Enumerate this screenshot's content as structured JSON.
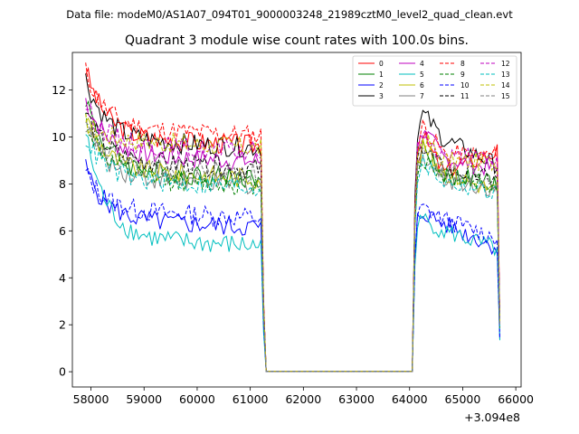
{
  "chart_data": {
    "type": "line",
    "suptitle": "Data file: modeM0/AS1A07_094T01_9000003248_21989cztM0_level2_quad_clean.evt",
    "title": "Quadrant 3 module wise count rates with 100.0s bins.",
    "x_offset_label": "+3.094e8",
    "xlim": [
      57650,
      66100
    ],
    "ylim": [
      -0.65,
      13.6
    ],
    "x_ticks": [
      58000,
      59000,
      60000,
      61000,
      62000,
      63000,
      64000,
      65000,
      66000
    ],
    "x_tick_labels": [
      "58000",
      "59000",
      "60000",
      "61000",
      "62000",
      "63000",
      "64000",
      "65000",
      "66000"
    ],
    "y_ticks": [
      0,
      2,
      4,
      6,
      8,
      10,
      12
    ],
    "y_tick_labels": [
      "0",
      "2",
      "4",
      "6",
      "8",
      "10",
      "12"
    ],
    "segments": [
      {
        "start": 57900,
        "end": 61200
      },
      {
        "start": 61300,
        "end": 64050
      },
      {
        "start": 64100,
        "end": 65650
      }
    ],
    "series": [
      {
        "name": "0",
        "color": "#ff0000",
        "dash": false,
        "level1": 10.0,
        "start1": 12.9,
        "level2": 8.5,
        "peak2": 10.0,
        "end2": 9.4
      },
      {
        "name": "1",
        "color": "#008000",
        "dash": false,
        "level1": 8.6,
        "start1": 11.7,
        "level2": 8.4,
        "peak2": 9.6,
        "end2": 8.0
      },
      {
        "name": "2",
        "color": "#0000ff",
        "dash": false,
        "level1": 6.5,
        "start1": 8.7,
        "level2": 6.3,
        "peak2": 6.8,
        "end2": 5.3
      },
      {
        "name": "3",
        "color": "#000000",
        "dash": false,
        "level1": 9.9,
        "start1": 12.5,
        "level2": 9.9,
        "peak2": 11.0,
        "end2": 8.8
      },
      {
        "name": "4",
        "color": "#bf00bf",
        "dash": false,
        "level1": 9.3,
        "start1": 11.6,
        "level2": 9.1,
        "peak2": 10.3,
        "end2": 8.6
      },
      {
        "name": "5",
        "color": "#00bfbf",
        "dash": false,
        "level1": 5.7,
        "start1": 10.2,
        "level2": 6.0,
        "peak2": 6.5,
        "end2": 5.2
      },
      {
        "name": "6",
        "color": "#bfbf00",
        "dash": false,
        "level1": 8.6,
        "start1": 10.9,
        "level2": 8.5,
        "peak2": 9.6,
        "end2": 7.7
      },
      {
        "name": "7",
        "color": "#808080",
        "dash": false,
        "level1": 8.3,
        "start1": 10.6,
        "level2": 8.2,
        "peak2": 9.3,
        "end2": 7.8
      },
      {
        "name": "8",
        "color": "#ff0000",
        "dash": true,
        "level1": 10.4,
        "start1": 12.8,
        "level2": 9.3,
        "peak2": 10.5,
        "end2": 9.2
      },
      {
        "name": "9",
        "color": "#008000",
        "dash": true,
        "level1": 8.3,
        "start1": 10.8,
        "level2": 8.3,
        "peak2": 9.0,
        "end2": 7.9
      },
      {
        "name": "10",
        "color": "#0000ff",
        "dash": true,
        "level1": 6.9,
        "start1": 8.5,
        "level2": 6.5,
        "peak2": 7.0,
        "end2": 5.7
      },
      {
        "name": "11",
        "color": "#000000",
        "dash": true,
        "level1": 9.0,
        "start1": 11.1,
        "level2": 8.6,
        "peak2": 9.6,
        "end2": 8.2
      },
      {
        "name": "12",
        "color": "#bf00bf",
        "dash": true,
        "level1": 9.7,
        "start1": 11.4,
        "level2": 9.2,
        "peak2": 10.1,
        "end2": 9.0
      },
      {
        "name": "13",
        "color": "#00bfbf",
        "dash": true,
        "level1": 8.2,
        "start1": 10.0,
        "level2": 8.1,
        "peak2": 8.9,
        "end2": 7.6
      },
      {
        "name": "14",
        "color": "#bfbf00",
        "dash": true,
        "level1": 9.9,
        "start1": 10.6,
        "level2": 9.0,
        "peak2": 10.0,
        "end2": 8.9
      },
      {
        "name": "15",
        "color": "#808080",
        "dash": true,
        "level1": 8.8,
        "start1": 10.4,
        "level2": 8.6,
        "peak2": 9.3,
        "end2": 8.2
      }
    ]
  }
}
